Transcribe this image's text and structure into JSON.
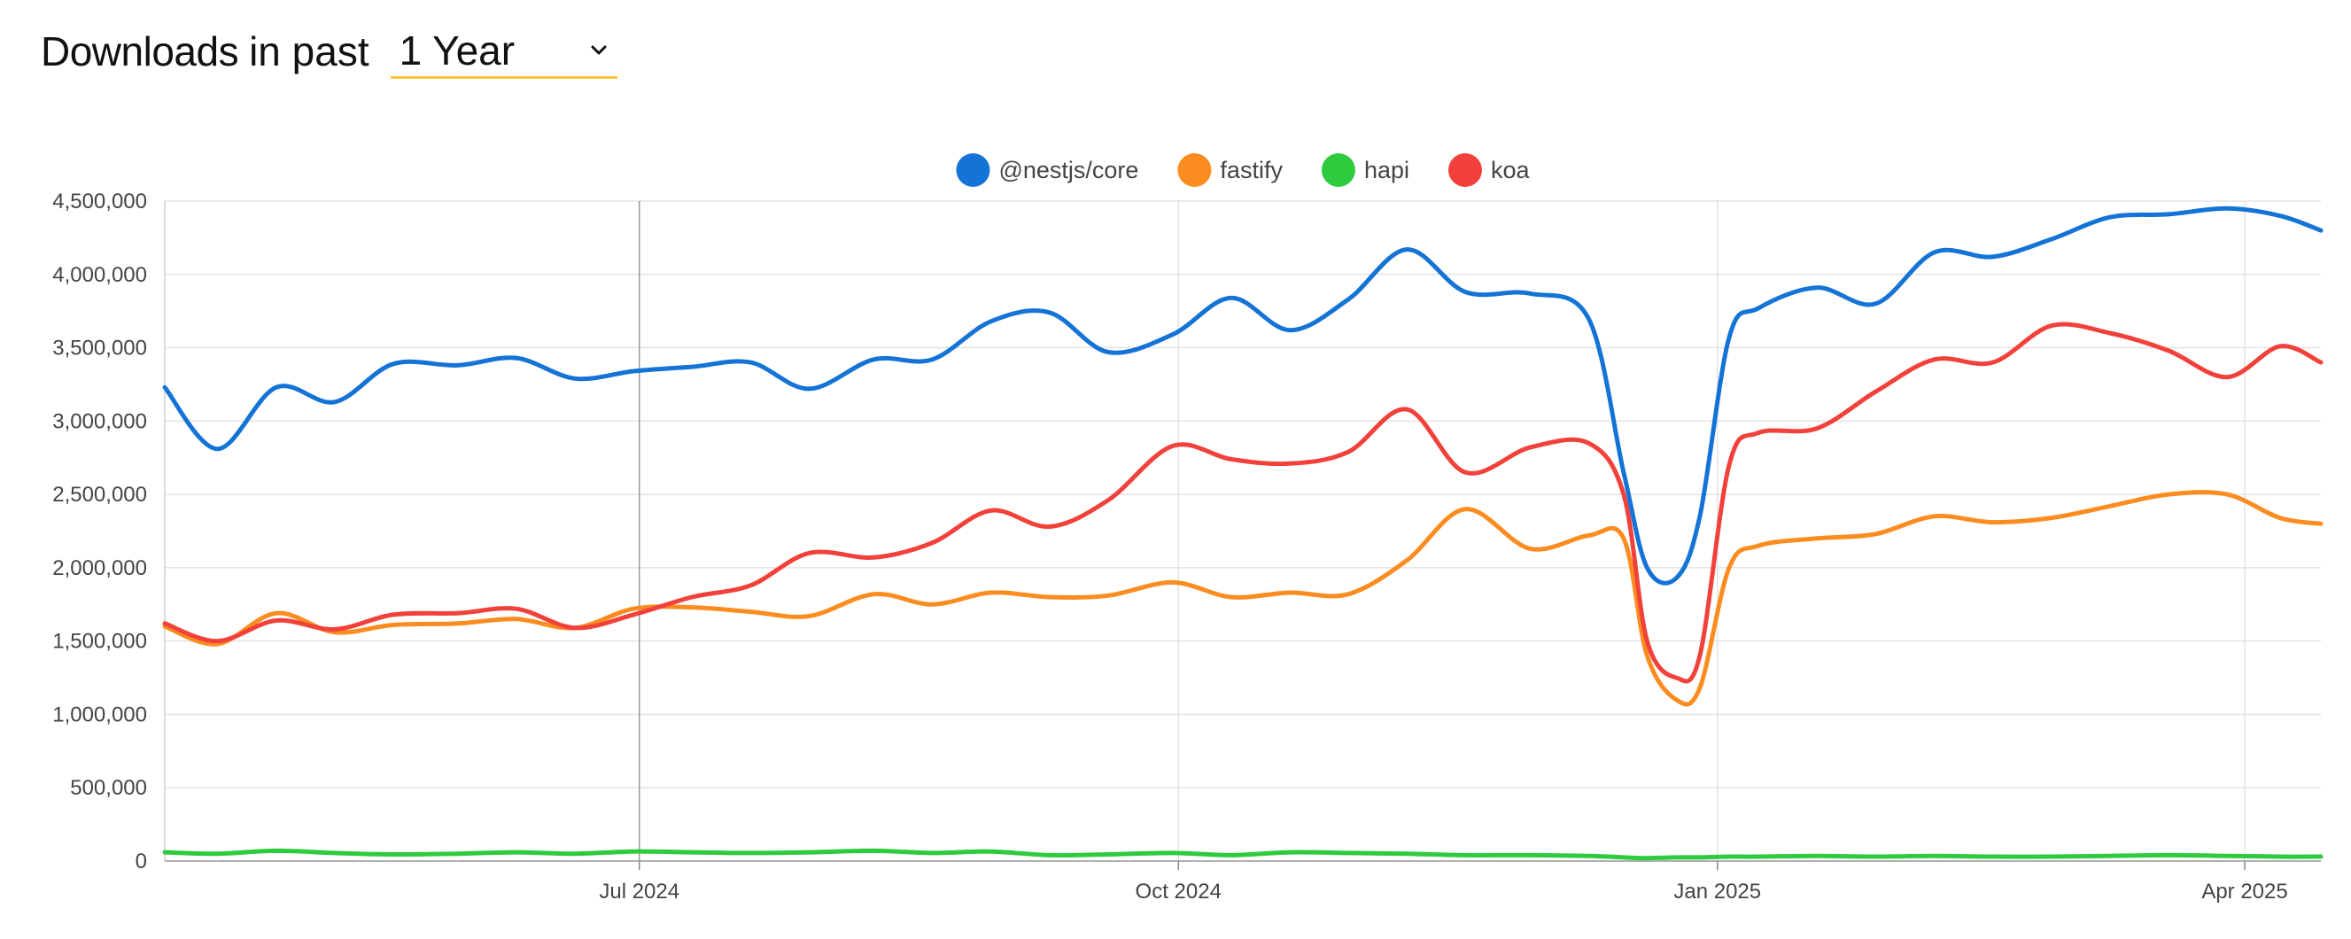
{
  "header": {
    "title_strong": "Downloads",
    "title_rest": "in past",
    "period": "1 Year"
  },
  "icons": {
    "period_dropdown": "chevron-down-icon"
  },
  "colors": {
    "accent_underline": "#ffc53d",
    "nestjs_core": "#1473d6",
    "fastify": "#fb8c1f",
    "hapi": "#2fcb3f",
    "koa": "#f2413a",
    "grid": "#e3e3e3",
    "guide": "#9a9a9a"
  },
  "chart_data": {
    "type": "line",
    "title": "",
    "xlabel": "",
    "ylabel": "",
    "ylim": [
      0,
      4500000
    ],
    "yticks": [
      0,
      500000,
      1000000,
      1500000,
      2000000,
      2500000,
      3000000,
      3500000,
      4000000,
      4500000
    ],
    "ytick_labels": [
      "0",
      "500,000",
      "1,000,000",
      "1,500,000",
      "2,000,000",
      "2,500,000",
      "3,000,000",
      "3,500,000",
      "4,000,000",
      "4,500,000"
    ],
    "xlim": [
      "2024-04-11",
      "2025-04-14"
    ],
    "xticks": [
      "2024-07-01",
      "2024-10-01",
      "2025-01-01",
      "2025-04-01"
    ],
    "xtick_labels": [
      "Jul 2024",
      "Oct 2024",
      "Jan 2025",
      "Apr 2025"
    ],
    "legend_position": "top-center",
    "grid": true,
    "x": [
      "2024-04-11",
      "2024-04-20",
      "2024-04-30",
      "2024-05-10",
      "2024-05-20",
      "2024-05-31",
      "2024-06-10",
      "2024-06-20",
      "2024-06-30",
      "2024-07-10",
      "2024-07-20",
      "2024-07-30",
      "2024-08-10",
      "2024-08-20",
      "2024-08-30",
      "2024-09-09",
      "2024-09-19",
      "2024-09-30",
      "2024-10-10",
      "2024-10-20",
      "2024-10-30",
      "2024-11-09",
      "2024-11-19",
      "2024-11-30",
      "2024-12-10",
      "2024-12-16",
      "2024-12-20",
      "2024-12-25",
      "2024-12-29",
      "2025-01-03",
      "2025-01-08",
      "2025-01-18",
      "2025-01-28",
      "2025-02-07",
      "2025-02-17",
      "2025-02-27",
      "2025-03-09",
      "2025-03-19",
      "2025-03-29",
      "2025-04-07",
      "2025-04-14"
    ],
    "series": [
      {
        "name": "@nestjs/core",
        "color": "#1473d6",
        "values": [
          3230000,
          2810000,
          3230000,
          3130000,
          3390000,
          3380000,
          3430000,
          3290000,
          3340000,
          3370000,
          3400000,
          3220000,
          3420000,
          3420000,
          3680000,
          3740000,
          3470000,
          3590000,
          3840000,
          3620000,
          3830000,
          4170000,
          3880000,
          3870000,
          3700000,
          2650000,
          2000000,
          1930000,
          2350000,
          3570000,
          3770000,
          3910000,
          3800000,
          4150000,
          4120000,
          4240000,
          4390000,
          4410000,
          4450000,
          4400000,
          4300000
        ]
      },
      {
        "name": "fastify",
        "color": "#fb8c1f",
        "values": [
          1600000,
          1480000,
          1690000,
          1560000,
          1610000,
          1620000,
          1650000,
          1590000,
          1720000,
          1730000,
          1700000,
          1670000,
          1820000,
          1750000,
          1830000,
          1800000,
          1810000,
          1900000,
          1800000,
          1830000,
          1820000,
          2050000,
          2400000,
          2130000,
          2220000,
          2200000,
          1400000,
          1100000,
          1180000,
          2000000,
          2150000,
          2200000,
          2230000,
          2350000,
          2310000,
          2340000,
          2420000,
          2500000,
          2500000,
          2340000,
          2300000
        ]
      },
      {
        "name": "hapi",
        "color": "#2fcb3f",
        "values": [
          60000,
          50000,
          70000,
          55000,
          45000,
          50000,
          60000,
          50000,
          65000,
          60000,
          55000,
          60000,
          70000,
          55000,
          65000,
          40000,
          45000,
          55000,
          40000,
          60000,
          55000,
          50000,
          40000,
          40000,
          35000,
          25000,
          20000,
          25000,
          25000,
          30000,
          30000,
          35000,
          30000,
          35000,
          30000,
          30000,
          35000,
          40000,
          35000,
          30000,
          30000
        ]
      },
      {
        "name": "koa",
        "color": "#f2413a",
        "values": [
          1620000,
          1500000,
          1640000,
          1580000,
          1680000,
          1690000,
          1720000,
          1590000,
          1680000,
          1800000,
          1880000,
          2100000,
          2070000,
          2170000,
          2390000,
          2280000,
          2460000,
          2830000,
          2740000,
          2710000,
          2790000,
          3080000,
          2650000,
          2820000,
          2850000,
          2500000,
          1500000,
          1250000,
          1400000,
          2700000,
          2920000,
          2950000,
          3200000,
          3420000,
          3400000,
          3650000,
          3600000,
          3480000,
          3300000,
          3510000,
          3400000
        ]
      }
    ]
  }
}
